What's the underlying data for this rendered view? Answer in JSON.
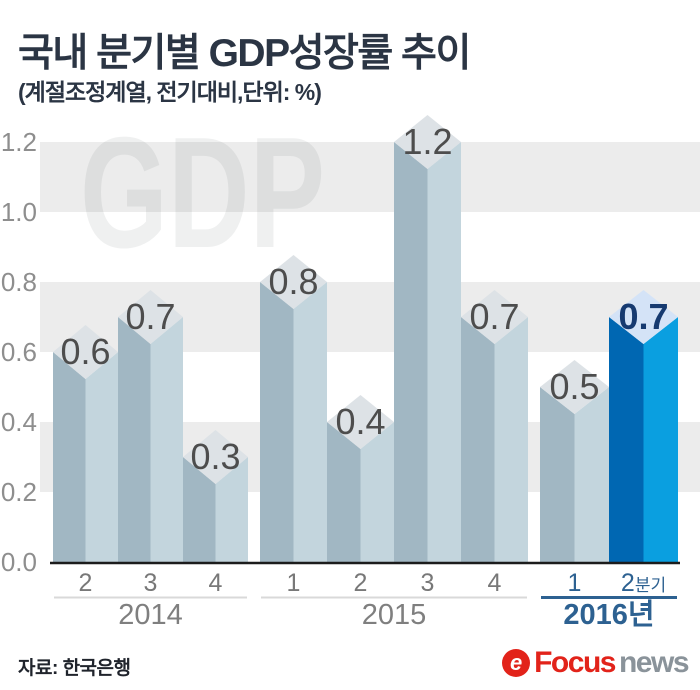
{
  "header": {
    "title": "국내 분기별 GDP성장률 추이",
    "subtitle": "(계절조정계열, 전기대비,단위: %)"
  },
  "watermark": "GDP",
  "source": "자료: 한국은행",
  "logo": {
    "icon_letter": "e",
    "brand_primary": "Focus",
    "brand_secondary": "news"
  },
  "colors": {
    "band": "#ececec",
    "watermark": "rgba(40,48,60,0.075)",
    "axis_text": "#8e8e8e",
    "baseline": "#1c1c1c",
    "bar_dark": "#a1b7c3",
    "bar_light": "#c3d5dd",
    "bar_cap": "#dde2e6",
    "bar_label": "#4d4d4d",
    "highlight_bar_dark": "#0067b2",
    "highlight_bar_light": "#0a9fe0",
    "highlight_bar_cap": "#d4e3f7",
    "highlight_bar_label": "#163a70",
    "quarter_text": "#787878",
    "year_text": "#7f7f7f",
    "underline": "#d9d9d9",
    "highlight_group_text": "#2d6191",
    "highlight_underline": "#2d6191"
  },
  "chart_data": {
    "type": "bar",
    "style": "3d-prism-columns",
    "title": "국내 분기별 GDP성장률 추이",
    "subtitle_note": "(계절조정계열, 전기대비,단위: %)",
    "unit": "%",
    "xlabel": "",
    "ylabel": "",
    "ylim": [
      0.0,
      1.2
    ],
    "ytick_interval": 0.2,
    "yticks": [
      1.2,
      1.0,
      0.8,
      0.6,
      0.4,
      0.2,
      0.0
    ],
    "grid": "alternating horizontal gray bands",
    "legend": "none",
    "groups": [
      {
        "year": "2014",
        "quarters": [
          "2",
          "3",
          "4"
        ],
        "values": [
          0.6,
          0.7,
          0.3
        ]
      },
      {
        "year": "2015",
        "quarters": [
          "1",
          "2",
          "3",
          "4"
        ],
        "values": [
          0.8,
          0.4,
          1.2,
          0.7
        ]
      },
      {
        "year": "2016년",
        "quarters": [
          "1",
          "2분기"
        ],
        "values": [
          0.5,
          0.7
        ],
        "highlight_index": 1
      }
    ],
    "highlighted_point": {
      "year": "2016",
      "quarter": "2분기",
      "value": 0.7
    }
  }
}
